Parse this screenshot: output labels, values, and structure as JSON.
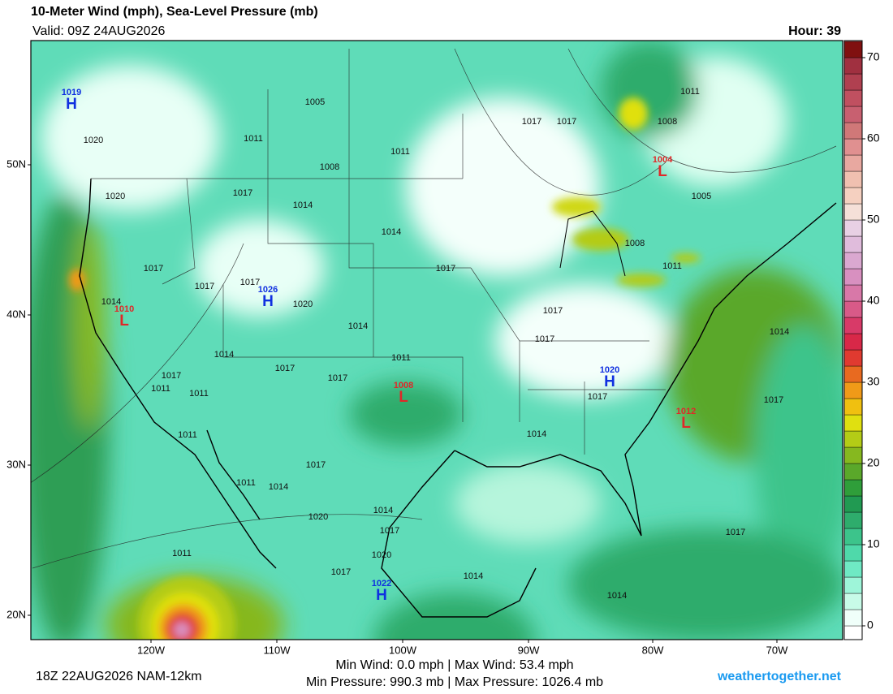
{
  "header": {
    "title": "10-Meter Wind (mph), Sea-Level Pressure (mb)",
    "valid": "Valid: 09Z 24AUG2026",
    "hour": "Hour: 39"
  },
  "map": {
    "lat_labels": [
      "50N",
      "40N",
      "30N",
      "20N"
    ],
    "lon_labels": [
      "120W",
      "110W",
      "100W",
      "90W",
      "80W",
      "70W"
    ],
    "pressure_centers": [
      {
        "value": 1019,
        "type": "H"
      },
      {
        "value": 1026,
        "type": "H"
      },
      {
        "value": 1010,
        "type": "L"
      },
      {
        "value": 1004,
        "type": "L"
      },
      {
        "value": 1008,
        "type": "L"
      },
      {
        "value": 1020,
        "type": "H"
      },
      {
        "value": 1012,
        "type": "L"
      },
      {
        "value": 1022,
        "type": "H"
      }
    ],
    "isobar_labels": [
      1020,
      1011,
      1005,
      1011,
      1008,
      1017,
      1014,
      1020,
      1017,
      1017,
      1011,
      1008,
      1005,
      1008,
      1011,
      1014,
      1017,
      1017,
      1017,
      1017,
      1020,
      1014,
      1014,
      1017,
      1017,
      1014,
      1011,
      1017,
      1017,
      1017,
      1011,
      1011,
      1017,
      1017,
      1014,
      1011,
      1014,
      1017,
      1011,
      1014,
      1020,
      1014,
      1017,
      1020,
      1017,
      1014,
      1014,
      1017,
      1011
    ]
  },
  "colorbar": {
    "lim": [
      -1.7,
      72.1
    ],
    "start": -2,
    "step": 2,
    "ticks": [
      0,
      10,
      20,
      30,
      40,
      50,
      60,
      70
    ],
    "colors": [
      "#ffffff",
      "#f0fffa",
      "#c8fbe8",
      "#9ef5d9",
      "#6fe9c4",
      "#4fd9aa",
      "#3cc48b",
      "#2eac6c",
      "#219a52",
      "#2f9e3a",
      "#5aa82a",
      "#86b81f",
      "#b4cc16",
      "#e0e010",
      "#f0c010",
      "#f09a18",
      "#e86a20",
      "#e03a30",
      "#d82848",
      "#d83a68",
      "#d85a88",
      "#d878a8",
      "#d890c0",
      "#daa8d0",
      "#e0bcdc",
      "#e8d0e4",
      "#f5e0d8",
      "#f5d0c0",
      "#f0c0b0",
      "#e8a8a0",
      "#e09090",
      "#d07878",
      "#c86070",
      "#c05060",
      "#b04050",
      "#a03040",
      "#801010"
    ]
  },
  "footer": {
    "run": "18Z 22AUG2026 NAM-12km",
    "wind": "Min Wind:  0.0 mph | Max Wind: 53.4 mph",
    "pressure": "Min Pressure: 990.3 mb | Max Pressure: 1026.4 mb",
    "site": "weathertogether.net"
  }
}
